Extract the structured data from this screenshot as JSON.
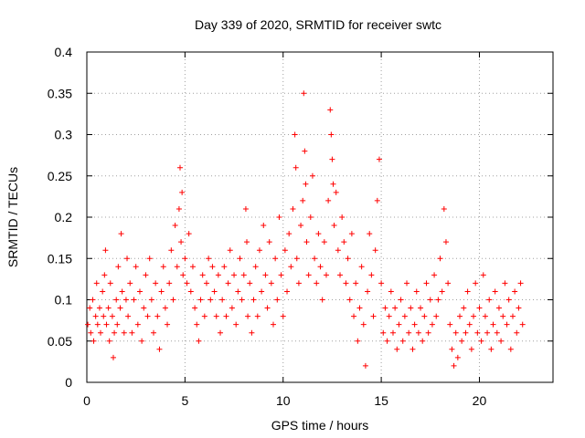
{
  "chart_data": {
    "type": "scatter",
    "title": "Day 339 of 2020, SRMTID for receiver swtc",
    "xlabel": "GPS time / hours",
    "ylabel": "SRMTID / TECUs",
    "xlim": [
      0,
      23.75
    ],
    "ylim": [
      0,
      0.4
    ],
    "xticks": [
      0,
      5,
      10,
      15,
      20
    ],
    "yticks": [
      0,
      0.05,
      0.1,
      0.15,
      0.2,
      0.25,
      0.3,
      0.35,
      0.4
    ],
    "ytick_labels": [
      "0",
      "0.05",
      "0.1",
      "0.15",
      "0.2",
      "0.25",
      "0.3",
      "0.35",
      "0.4"
    ],
    "grid": true,
    "marker": "+",
    "marker_color": "#ff0000",
    "series": [
      {
        "name": "SRMTID",
        "points": [
          [
            0.05,
            0.07
          ],
          [
            0.15,
            0.09
          ],
          [
            0.2,
            0.06
          ],
          [
            0.3,
            0.1
          ],
          [
            0.35,
            0.05
          ],
          [
            0.45,
            0.08
          ],
          [
            0.5,
            0.12
          ],
          [
            0.55,
            0.07
          ],
          [
            0.65,
            0.09
          ],
          [
            0.7,
            0.06
          ],
          [
            0.8,
            0.11
          ],
          [
            0.85,
            0.08
          ],
          [
            0.9,
            0.13
          ],
          [
            0.95,
            0.16
          ],
          [
            1.0,
            0.07
          ],
          [
            1.1,
            0.09
          ],
          [
            1.15,
            0.05
          ],
          [
            1.2,
            0.12
          ],
          [
            1.3,
            0.08
          ],
          [
            1.35,
            0.03
          ],
          [
            1.4,
            0.06
          ],
          [
            1.5,
            0.1
          ],
          [
            1.55,
            0.07
          ],
          [
            1.6,
            0.14
          ],
          [
            1.7,
            0.09
          ],
          [
            1.75,
            0.18
          ],
          [
            1.8,
            0.11
          ],
          [
            1.9,
            0.06
          ],
          [
            2.0,
            0.1
          ],
          [
            2.05,
            0.15
          ],
          [
            2.1,
            0.08
          ],
          [
            2.2,
            0.12
          ],
          [
            2.3,
            0.06
          ],
          [
            2.4,
            0.1
          ],
          [
            2.5,
            0.14
          ],
          [
            2.6,
            0.07
          ],
          [
            2.7,
            0.11
          ],
          [
            2.8,
            0.05
          ],
          [
            2.9,
            0.09
          ],
          [
            3.0,
            0.13
          ],
          [
            3.1,
            0.08
          ],
          [
            3.2,
            0.15
          ],
          [
            3.3,
            0.1
          ],
          [
            3.4,
            0.06
          ],
          [
            3.5,
            0.12
          ],
          [
            3.6,
            0.08
          ],
          [
            3.7,
            0.04
          ],
          [
            3.8,
            0.11
          ],
          [
            3.9,
            0.14
          ],
          [
            4.0,
            0.09
          ],
          [
            4.1,
            0.07
          ],
          [
            4.2,
            0.12
          ],
          [
            4.3,
            0.16
          ],
          [
            4.4,
            0.1
          ],
          [
            4.5,
            0.19
          ],
          [
            4.6,
            0.14
          ],
          [
            4.7,
            0.21
          ],
          [
            4.75,
            0.26
          ],
          [
            4.8,
            0.17
          ],
          [
            4.85,
            0.23
          ],
          [
            4.9,
            0.13
          ],
          [
            5.0,
            0.15
          ],
          [
            5.1,
            0.12
          ],
          [
            5.2,
            0.18
          ],
          [
            5.3,
            0.11
          ],
          [
            5.4,
            0.14
          ],
          [
            5.5,
            0.09
          ],
          [
            5.6,
            0.07
          ],
          [
            5.7,
            0.05
          ],
          [
            5.8,
            0.1
          ],
          [
            5.9,
            0.13
          ],
          [
            6.0,
            0.08
          ],
          [
            6.1,
            0.12
          ],
          [
            6.2,
            0.15
          ],
          [
            6.3,
            0.1
          ],
          [
            6.4,
            0.14
          ],
          [
            6.5,
            0.11
          ],
          [
            6.6,
            0.08
          ],
          [
            6.7,
            0.13
          ],
          [
            6.8,
            0.06
          ],
          [
            6.9,
            0.1
          ],
          [
            7.0,
            0.14
          ],
          [
            7.1,
            0.08
          ],
          [
            7.2,
            0.12
          ],
          [
            7.3,
            0.16
          ],
          [
            7.4,
            0.09
          ],
          [
            7.5,
            0.13
          ],
          [
            7.6,
            0.07
          ],
          [
            7.7,
            0.11
          ],
          [
            7.8,
            0.15
          ],
          [
            7.9,
            0.1
          ],
          [
            8.0,
            0.13
          ],
          [
            8.1,
            0.21
          ],
          [
            8.15,
            0.17
          ],
          [
            8.2,
            0.08
          ],
          [
            8.3,
            0.12
          ],
          [
            8.4,
            0.06
          ],
          [
            8.5,
            0.1
          ],
          [
            8.6,
            0.14
          ],
          [
            8.7,
            0.08
          ],
          [
            8.8,
            0.16
          ],
          [
            8.9,
            0.11
          ],
          [
            9.0,
            0.19
          ],
          [
            9.1,
            0.13
          ],
          [
            9.2,
            0.09
          ],
          [
            9.3,
            0.17
          ],
          [
            9.4,
            0.12
          ],
          [
            9.5,
            0.07
          ],
          [
            9.6,
            0.15
          ],
          [
            9.7,
            0.1
          ],
          [
            9.8,
            0.2
          ],
          [
            9.9,
            0.13
          ],
          [
            10.0,
            0.08
          ],
          [
            10.1,
            0.16
          ],
          [
            10.2,
            0.11
          ],
          [
            10.3,
            0.18
          ],
          [
            10.4,
            0.14
          ],
          [
            10.5,
            0.21
          ],
          [
            10.6,
            0.3
          ],
          [
            10.65,
            0.26
          ],
          [
            10.7,
            0.15
          ],
          [
            10.8,
            0.12
          ],
          [
            10.9,
            0.19
          ],
          [
            11.0,
            0.22
          ],
          [
            11.05,
            0.35
          ],
          [
            11.1,
            0.28
          ],
          [
            11.15,
            0.24
          ],
          [
            11.2,
            0.17
          ],
          [
            11.3,
            0.13
          ],
          [
            11.4,
            0.2
          ],
          [
            11.5,
            0.25
          ],
          [
            11.6,
            0.15
          ],
          [
            11.7,
            0.12
          ],
          [
            11.8,
            0.18
          ],
          [
            11.9,
            0.14
          ],
          [
            12.0,
            0.1
          ],
          [
            12.1,
            0.17
          ],
          [
            12.2,
            0.13
          ],
          [
            12.3,
            0.22
          ],
          [
            12.4,
            0.33
          ],
          [
            12.45,
            0.3
          ],
          [
            12.5,
            0.27
          ],
          [
            12.55,
            0.24
          ],
          [
            12.6,
            0.19
          ],
          [
            12.7,
            0.23
          ],
          [
            12.8,
            0.16
          ],
          [
            12.9,
            0.13
          ],
          [
            13.0,
            0.2
          ],
          [
            13.1,
            0.17
          ],
          [
            13.2,
            0.12
          ],
          [
            13.3,
            0.15
          ],
          [
            13.4,
            0.1
          ],
          [
            13.5,
            0.18
          ],
          [
            13.6,
            0.08
          ],
          [
            13.7,
            0.12
          ],
          [
            13.8,
            0.05
          ],
          [
            13.9,
            0.09
          ],
          [
            14.0,
            0.14
          ],
          [
            14.1,
            0.07
          ],
          [
            14.2,
            0.02
          ],
          [
            14.3,
            0.11
          ],
          [
            14.4,
            0.18
          ],
          [
            14.5,
            0.13
          ],
          [
            14.6,
            0.08
          ],
          [
            14.7,
            0.16
          ],
          [
            14.8,
            0.22
          ],
          [
            14.9,
            0.27
          ],
          [
            15.0,
            0.12
          ],
          [
            15.1,
            0.06
          ],
          [
            15.2,
            0.09
          ],
          [
            15.3,
            0.05
          ],
          [
            15.4,
            0.08
          ],
          [
            15.5,
            0.11
          ],
          [
            15.6,
            0.06
          ],
          [
            15.7,
            0.09
          ],
          [
            15.8,
            0.04
          ],
          [
            15.9,
            0.07
          ],
          [
            16.0,
            0.1
          ],
          [
            16.1,
            0.05
          ],
          [
            16.2,
            0.08
          ],
          [
            16.3,
            0.12
          ],
          [
            16.4,
            0.06
          ],
          [
            16.5,
            0.09
          ],
          [
            16.6,
            0.04
          ],
          [
            16.7,
            0.07
          ],
          [
            16.8,
            0.11
          ],
          [
            16.9,
            0.06
          ],
          [
            17.0,
            0.09
          ],
          [
            17.1,
            0.05
          ],
          [
            17.2,
            0.08
          ],
          [
            17.3,
            0.12
          ],
          [
            17.4,
            0.06
          ],
          [
            17.5,
            0.1
          ],
          [
            17.6,
            0.07
          ],
          [
            17.7,
            0.13
          ],
          [
            17.8,
            0.08
          ],
          [
            17.9,
            0.1
          ],
          [
            18.0,
            0.15
          ],
          [
            18.1,
            0.11
          ],
          [
            18.2,
            0.21
          ],
          [
            18.3,
            0.17
          ],
          [
            18.4,
            0.12
          ],
          [
            18.5,
            0.07
          ],
          [
            18.6,
            0.04
          ],
          [
            18.7,
            0.02
          ],
          [
            18.8,
            0.06
          ],
          [
            18.9,
            0.03
          ],
          [
            19.0,
            0.08
          ],
          [
            19.1,
            0.05
          ],
          [
            19.2,
            0.09
          ],
          [
            19.3,
            0.06
          ],
          [
            19.4,
            0.11
          ],
          [
            19.5,
            0.07
          ],
          [
            19.6,
            0.04
          ],
          [
            19.7,
            0.08
          ],
          [
            19.8,
            0.12
          ],
          [
            19.9,
            0.06
          ],
          [
            20.0,
            0.09
          ],
          [
            20.1,
            0.05
          ],
          [
            20.2,
            0.13
          ],
          [
            20.3,
            0.08
          ],
          [
            20.4,
            0.06
          ],
          [
            20.5,
            0.1
          ],
          [
            20.6,
            0.04
          ],
          [
            20.7,
            0.07
          ],
          [
            20.8,
            0.11
          ],
          [
            20.9,
            0.06
          ],
          [
            21.0,
            0.09
          ],
          [
            21.1,
            0.05
          ],
          [
            21.2,
            0.08
          ],
          [
            21.3,
            0.12
          ],
          [
            21.4,
            0.07
          ],
          [
            21.5,
            0.1
          ],
          [
            21.6,
            0.04
          ],
          [
            21.7,
            0.08
          ],
          [
            21.8,
            0.11
          ],
          [
            21.9,
            0.06
          ],
          [
            22.0,
            0.09
          ],
          [
            22.1,
            0.12
          ],
          [
            22.2,
            0.07
          ]
        ]
      }
    ]
  }
}
